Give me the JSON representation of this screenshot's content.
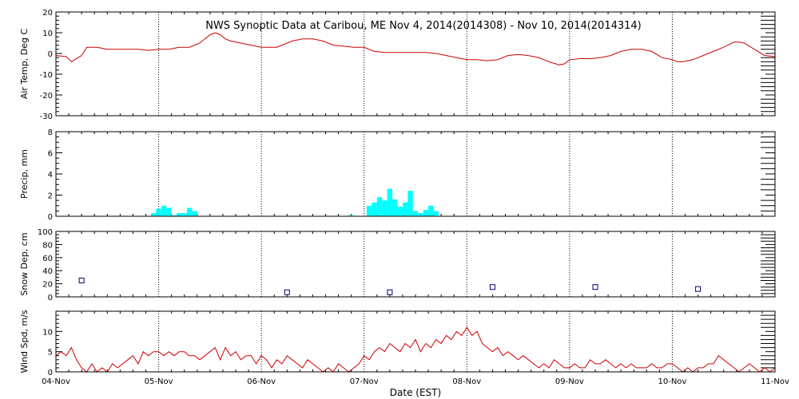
{
  "title": "NWS Synoptic Data at Caribou, ME   Nov  4, 2014(2014308) - Nov 10, 2014(2014314)",
  "x_axis": {
    "label": "Date (EST)",
    "ticks": [
      "04-Nov",
      "05-Nov",
      "06-Nov",
      "07-Nov",
      "08-Nov",
      "09-Nov",
      "10-Nov",
      "11-Nov"
    ]
  },
  "colors": {
    "temp": "#cc0000",
    "precip": "#00ffff",
    "snow": "#000080",
    "wind": "#cc0000",
    "axis": "#000000"
  },
  "chart_data": [
    {
      "type": "line",
      "ylabel": "Air Temp, Deg C",
      "ylim": [
        -30,
        20
      ],
      "yticks": [
        -30,
        -20,
        -10,
        0,
        10,
        20
      ],
      "grid": true,
      "x": [
        0,
        0.1,
        0.15,
        0.25,
        0.3,
        0.4,
        0.5,
        0.6,
        0.7,
        0.8,
        0.9,
        1.0,
        1.1,
        1.2,
        1.3,
        1.4,
        1.5,
        1.55,
        1.6,
        1.65,
        1.7,
        1.8,
        1.9,
        2.0,
        2.1,
        2.15,
        2.2,
        2.3,
        2.4,
        2.5,
        2.6,
        2.65,
        2.7,
        2.8,
        2.9,
        3.0,
        3.1,
        3.2,
        3.3,
        3.4,
        3.5,
        3.6,
        3.7,
        3.8,
        3.9,
        4.0,
        4.1,
        4.2,
        4.3,
        4.4,
        4.5,
        4.6,
        4.7,
        4.8,
        4.9,
        4.95,
        5.0,
        5.1,
        5.2,
        5.3,
        5.4,
        5.5,
        5.6,
        5.7,
        5.8,
        5.9,
        6.0,
        6.05,
        6.1,
        6.2,
        6.3,
        6.4,
        6.5,
        6.6,
        6.65,
        6.7,
        6.8,
        6.9,
        7.0
      ],
      "values": [
        -1,
        -1.5,
        -4,
        -1,
        3,
        3,
        2,
        2,
        2,
        2,
        1.5,
        2,
        2,
        3,
        3,
        5,
        9,
        10,
        9,
        7,
        6,
        5,
        4,
        3,
        3,
        3,
        4,
        6,
        7,
        7,
        6,
        5,
        4,
        3.5,
        3,
        3,
        1,
        0.5,
        0.5,
        0.5,
        0.5,
        0.5,
        0,
        -1,
        -2,
        -3,
        -3,
        -3.5,
        -3,
        -1,
        -0.5,
        -1,
        -2,
        -4,
        -5.5,
        -5,
        -3,
        -2.5,
        -2.5,
        -2,
        -1,
        1,
        2,
        2,
        1,
        -2,
        -3,
        -4,
        -4,
        -3,
        -1,
        1,
        3,
        5.5,
        5.5,
        5,
        2,
        -1,
        -1.5
      ]
    },
    {
      "type": "bar",
      "ylabel": "Precip, mm",
      "ylim": [
        0,
        8
      ],
      "yticks": [
        0,
        2,
        4,
        6,
        8
      ],
      "grid": true,
      "x": [
        0.95,
        1.0,
        1.05,
        1.1,
        1.15,
        1.2,
        1.25,
        1.3,
        1.35,
        2.87,
        3.05,
        3.1,
        3.15,
        3.2,
        3.25,
        3.3,
        3.35,
        3.4,
        3.45,
        3.5,
        3.55,
        3.6,
        3.65,
        3.7
      ],
      "values": [
        0.3,
        0.7,
        1.0,
        0.8,
        0.1,
        0.3,
        0.3,
        0.8,
        0.5,
        0.1,
        1.0,
        1.3,
        1.8,
        1.5,
        2.6,
        1.6,
        0.9,
        1.3,
        2.4,
        0.5,
        0.3,
        0.6,
        1.0,
        0.5
      ]
    },
    {
      "type": "scatter",
      "ylabel": "Snow Dep, cm",
      "ylim": [
        0,
        100
      ],
      "yticks": [
        0,
        20,
        40,
        60,
        80,
        100
      ],
      "grid": true,
      "x": [
        0.25,
        2.25,
        3.25,
        4.25,
        5.25,
        6.25
      ],
      "values": [
        25,
        7,
        7,
        15,
        15,
        12
      ]
    },
    {
      "type": "line",
      "ylabel": "Wind Spd, m/s",
      "ylim": [
        0,
        15
      ],
      "yticks": [
        0,
        5,
        10
      ],
      "grid": true,
      "x": [
        0,
        0.05,
        0.1,
        0.15,
        0.2,
        0.25,
        0.3,
        0.35,
        0.4,
        0.45,
        0.5,
        0.55,
        0.6,
        0.65,
        0.7,
        0.75,
        0.8,
        0.85,
        0.9,
        0.95,
        1.0,
        1.05,
        1.1,
        1.15,
        1.2,
        1.25,
        1.3,
        1.35,
        1.4,
        1.45,
        1.5,
        1.55,
        1.6,
        1.65,
        1.7,
        1.75,
        1.8,
        1.85,
        1.9,
        1.95,
        2.0,
        2.05,
        2.1,
        2.15,
        2.2,
        2.25,
        2.3,
        2.35,
        2.4,
        2.45,
        2.5,
        2.55,
        2.6,
        2.65,
        2.7,
        2.75,
        2.8,
        2.85,
        2.9,
        2.95,
        3.0,
        3.05,
        3.1,
        3.15,
        3.2,
        3.25,
        3.3,
        3.35,
        3.4,
        3.45,
        3.5,
        3.55,
        3.6,
        3.65,
        3.7,
        3.75,
        3.8,
        3.85,
        3.9,
        3.95,
        4.0,
        4.05,
        4.1,
        4.15,
        4.2,
        4.25,
        4.3,
        4.35,
        4.4,
        4.45,
        4.5,
        4.55,
        4.6,
        4.65,
        4.7,
        4.75,
        4.8,
        4.85,
        4.9,
        4.95,
        5.0,
        5.05,
        5.1,
        5.15,
        5.2,
        5.25,
        5.3,
        5.35,
        5.4,
        5.45,
        5.5,
        5.55,
        5.6,
        5.65,
        5.7,
        5.75,
        5.8,
        5.85,
        5.9,
        5.95,
        6.0,
        6.05,
        6.1,
        6.15,
        6.2,
        6.25,
        6.3,
        6.35,
        6.4,
        6.45,
        6.5,
        6.55,
        6.6,
        6.65,
        6.7,
        6.75,
        6.8,
        6.85,
        6.9,
        6.95,
        7.0
      ],
      "values": [
        4,
        5,
        4,
        6,
        3,
        1,
        0,
        2,
        0,
        1,
        0,
        2,
        1,
        2,
        3,
        4,
        2,
        5,
        4,
        5,
        5,
        4,
        5,
        4,
        5,
        5,
        4,
        4,
        3,
        4,
        5,
        6,
        3,
        6,
        4,
        5,
        3,
        4,
        4,
        2,
        4,
        3,
        1,
        3,
        2,
        4,
        3,
        2,
        1,
        3,
        2,
        1,
        0,
        1,
        0,
        2,
        1,
        0,
        1,
        2,
        4,
        3,
        5,
        6,
        5,
        7,
        6,
        5,
        7,
        6,
        8,
        5,
        7,
        6,
        8,
        7,
        9,
        8,
        10,
        9,
        11,
        9,
        10,
        7,
        6,
        5,
        6,
        4,
        5,
        4,
        3,
        4,
        3,
        2,
        1,
        2,
        1,
        3,
        2,
        1,
        1,
        2,
        1,
        1,
        3,
        2,
        2,
        3,
        2,
        1,
        2,
        1,
        2,
        1,
        1,
        1,
        2,
        1,
        1,
        2,
        2,
        1,
        0,
        1,
        0,
        1,
        1,
        2,
        2,
        4,
        3,
        2,
        1,
        0,
        1,
        2,
        1,
        0,
        1,
        0,
        1
      ]
    }
  ]
}
